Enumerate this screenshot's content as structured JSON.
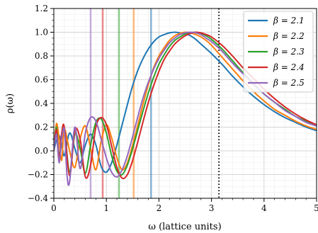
{
  "chart_data": {
    "type": "line",
    "xlabel": "ω (lattice units)",
    "ylabel": "ρ(ω)",
    "xlim": [
      0,
      5
    ],
    "ylim": [
      -0.4,
      1.2
    ],
    "xticks": [
      0,
      1,
      2,
      3,
      4,
      5
    ],
    "yticks": [
      -0.4,
      -0.2,
      0.0,
      0.2,
      0.4,
      0.6,
      0.8,
      1.0,
      1.2
    ],
    "ytick_labels": [
      "−0.4",
      "−0.2",
      "0.0",
      "0.2",
      "0.4",
      "0.6",
      "0.8",
      "1.0",
      "1.2"
    ],
    "xtick_labels": [
      "0",
      "1",
      "2",
      "3",
      "4",
      "5"
    ],
    "grid": true,
    "legend_position": "top-right",
    "series": [
      {
        "name": "β = 2.1",
        "legend_prefix": "β",
        "legend_value": "= 2.1",
        "color": "#1f77b4",
        "vline": 1.85,
        "x": [
          0.0,
          0.05,
          0.1,
          0.15,
          0.2,
          0.3,
          0.4,
          0.5,
          0.6,
          0.7,
          0.8,
          0.9,
          1.0,
          1.1,
          1.2,
          1.3,
          1.4,
          1.5,
          1.6,
          1.7,
          1.8,
          1.9,
          2.0,
          2.1,
          2.2,
          2.3,
          2.4,
          2.5,
          2.6,
          2.7,
          2.8,
          3.0,
          3.2,
          3.4,
          3.6,
          3.8,
          4.0,
          4.2,
          4.4,
          4.6,
          4.8,
          5.0
        ],
        "y": [
          0.0,
          0.09,
          0.13,
          0.06,
          -0.04,
          0.15,
          0.02,
          -0.1,
          0.05,
          0.14,
          0.05,
          -0.13,
          -0.18,
          -0.1,
          0.05,
          0.22,
          0.39,
          0.55,
          0.68,
          0.78,
          0.86,
          0.92,
          0.96,
          0.98,
          0.995,
          1.0,
          0.995,
          0.99,
          0.97,
          0.94,
          0.9,
          0.82,
          0.73,
          0.63,
          0.54,
          0.46,
          0.39,
          0.33,
          0.28,
          0.24,
          0.2,
          0.17
        ]
      },
      {
        "name": "β = 2.2",
        "legend_prefix": "β",
        "legend_value": "= 2.2",
        "color": "#ff7f0e",
        "vline": 1.52,
        "x": [
          0.0,
          0.05,
          0.1,
          0.15,
          0.2,
          0.3,
          0.4,
          0.5,
          0.6,
          0.7,
          0.8,
          0.9,
          1.0,
          1.1,
          1.2,
          1.3,
          1.4,
          1.5,
          1.6,
          1.7,
          1.8,
          1.9,
          2.0,
          2.1,
          2.2,
          2.3,
          2.4,
          2.5,
          2.6,
          2.7,
          2.8,
          2.9,
          3.0,
          3.2,
          3.4,
          3.6,
          3.8,
          4.0,
          4.2,
          4.4,
          4.6,
          4.8,
          5.0
        ],
        "y": [
          0.0,
          0.23,
          0.1,
          -0.08,
          0.18,
          0.0,
          -0.14,
          0.1,
          0.21,
          0.02,
          -0.16,
          0.08,
          0.22,
          0.11,
          -0.06,
          -0.16,
          -0.1,
          0.05,
          0.22,
          0.4,
          0.56,
          0.7,
          0.8,
          0.87,
          0.93,
          0.97,
          0.99,
          1.0,
          0.995,
          0.98,
          0.96,
          0.93,
          0.89,
          0.79,
          0.69,
          0.59,
          0.5,
          0.42,
          0.35,
          0.3,
          0.25,
          0.21,
          0.18
        ]
      },
      {
        "name": "β = 2.3",
        "legend_prefix": "β",
        "legend_value": "= 2.3",
        "color": "#2ca02c",
        "vline": 1.24,
        "x": [
          0.0,
          0.05,
          0.1,
          0.15,
          0.2,
          0.3,
          0.4,
          0.5,
          0.6,
          0.7,
          0.8,
          0.9,
          1.0,
          1.1,
          1.2,
          1.3,
          1.4,
          1.5,
          1.6,
          1.7,
          1.8,
          1.9,
          2.0,
          2.1,
          2.2,
          2.3,
          2.4,
          2.5,
          2.6,
          2.7,
          2.8,
          2.9,
          3.0,
          3.2,
          3.4,
          3.6,
          3.8,
          4.0,
          4.2,
          4.4,
          4.6,
          4.8,
          5.0
        ],
        "y": [
          0.0,
          0.2,
          -0.05,
          0.12,
          0.19,
          -0.18,
          0.14,
          0.02,
          -0.19,
          0.05,
          0.24,
          0.27,
          0.15,
          -0.04,
          -0.17,
          -0.2,
          -0.12,
          0.02,
          0.18,
          0.34,
          0.49,
          0.62,
          0.73,
          0.81,
          0.88,
          0.93,
          0.96,
          0.985,
          0.995,
          1.0,
          0.99,
          0.97,
          0.94,
          0.86,
          0.76,
          0.66,
          0.57,
          0.48,
          0.41,
          0.35,
          0.29,
          0.25,
          0.21
        ]
      },
      {
        "name": "β = 2.4",
        "legend_prefix": "β",
        "legend_value": "= 2.4",
        "color": "#d62728",
        "vline": 0.93,
        "x": [
          0.0,
          0.05,
          0.1,
          0.15,
          0.2,
          0.3,
          0.4,
          0.5,
          0.6,
          0.7,
          0.8,
          0.9,
          1.0,
          1.1,
          1.2,
          1.3,
          1.4,
          1.5,
          1.6,
          1.7,
          1.8,
          1.9,
          2.0,
          2.1,
          2.2,
          2.3,
          2.4,
          2.5,
          2.6,
          2.7,
          2.8,
          2.9,
          3.0,
          3.2,
          3.4,
          3.6,
          3.8,
          4.0,
          4.2,
          4.4,
          4.6,
          4.8,
          5.0
        ],
        "y": [
          0.0,
          0.18,
          -0.06,
          0.15,
          0.2,
          -0.21,
          0.17,
          0.1,
          -0.22,
          -0.12,
          0.2,
          0.28,
          0.22,
          0.04,
          -0.14,
          -0.23,
          -0.2,
          -0.08,
          0.08,
          0.25,
          0.41,
          0.55,
          0.67,
          0.77,
          0.84,
          0.9,
          0.94,
          0.97,
          0.99,
          1.0,
          0.995,
          0.98,
          0.96,
          0.89,
          0.8,
          0.7,
          0.61,
          0.52,
          0.44,
          0.37,
          0.31,
          0.26,
          0.22
        ]
      },
      {
        "name": "β = 2.5",
        "legend_prefix": "β",
        "legend_value": "= 2.5",
        "color": "#9467bd",
        "vline": 0.7,
        "x": [
          0.0,
          0.05,
          0.1,
          0.15,
          0.2,
          0.25,
          0.3,
          0.4,
          0.5,
          0.6,
          0.7,
          0.8,
          0.9,
          1.0,
          1.1,
          1.2,
          1.3,
          1.4,
          1.5,
          1.6,
          1.7,
          1.8,
          1.9,
          2.0,
          2.1,
          2.2,
          2.3,
          2.4,
          2.5,
          2.6,
          2.7,
          2.8,
          2.9,
          3.0,
          3.2,
          3.4,
          3.6,
          3.8,
          4.0,
          4.2,
          4.4,
          4.6,
          4.8,
          5.0
        ],
        "y": [
          0.0,
          0.14,
          -0.1,
          0.1,
          0.18,
          -0.2,
          -0.26,
          0.2,
          -0.15,
          0.15,
          0.28,
          0.25,
          0.1,
          -0.06,
          -0.18,
          -0.22,
          -0.16,
          -0.04,
          0.12,
          0.29,
          0.45,
          0.58,
          0.69,
          0.78,
          0.85,
          0.91,
          0.95,
          0.98,
          0.995,
          1.0,
          0.995,
          0.98,
          0.95,
          0.92,
          0.84,
          0.74,
          0.65,
          0.56,
          0.48,
          0.41,
          0.34,
          0.29,
          0.24,
          0.21
        ]
      }
    ],
    "reference_line": {
      "x": 3.14159,
      "color": "#000000",
      "style": "dotted"
    }
  }
}
